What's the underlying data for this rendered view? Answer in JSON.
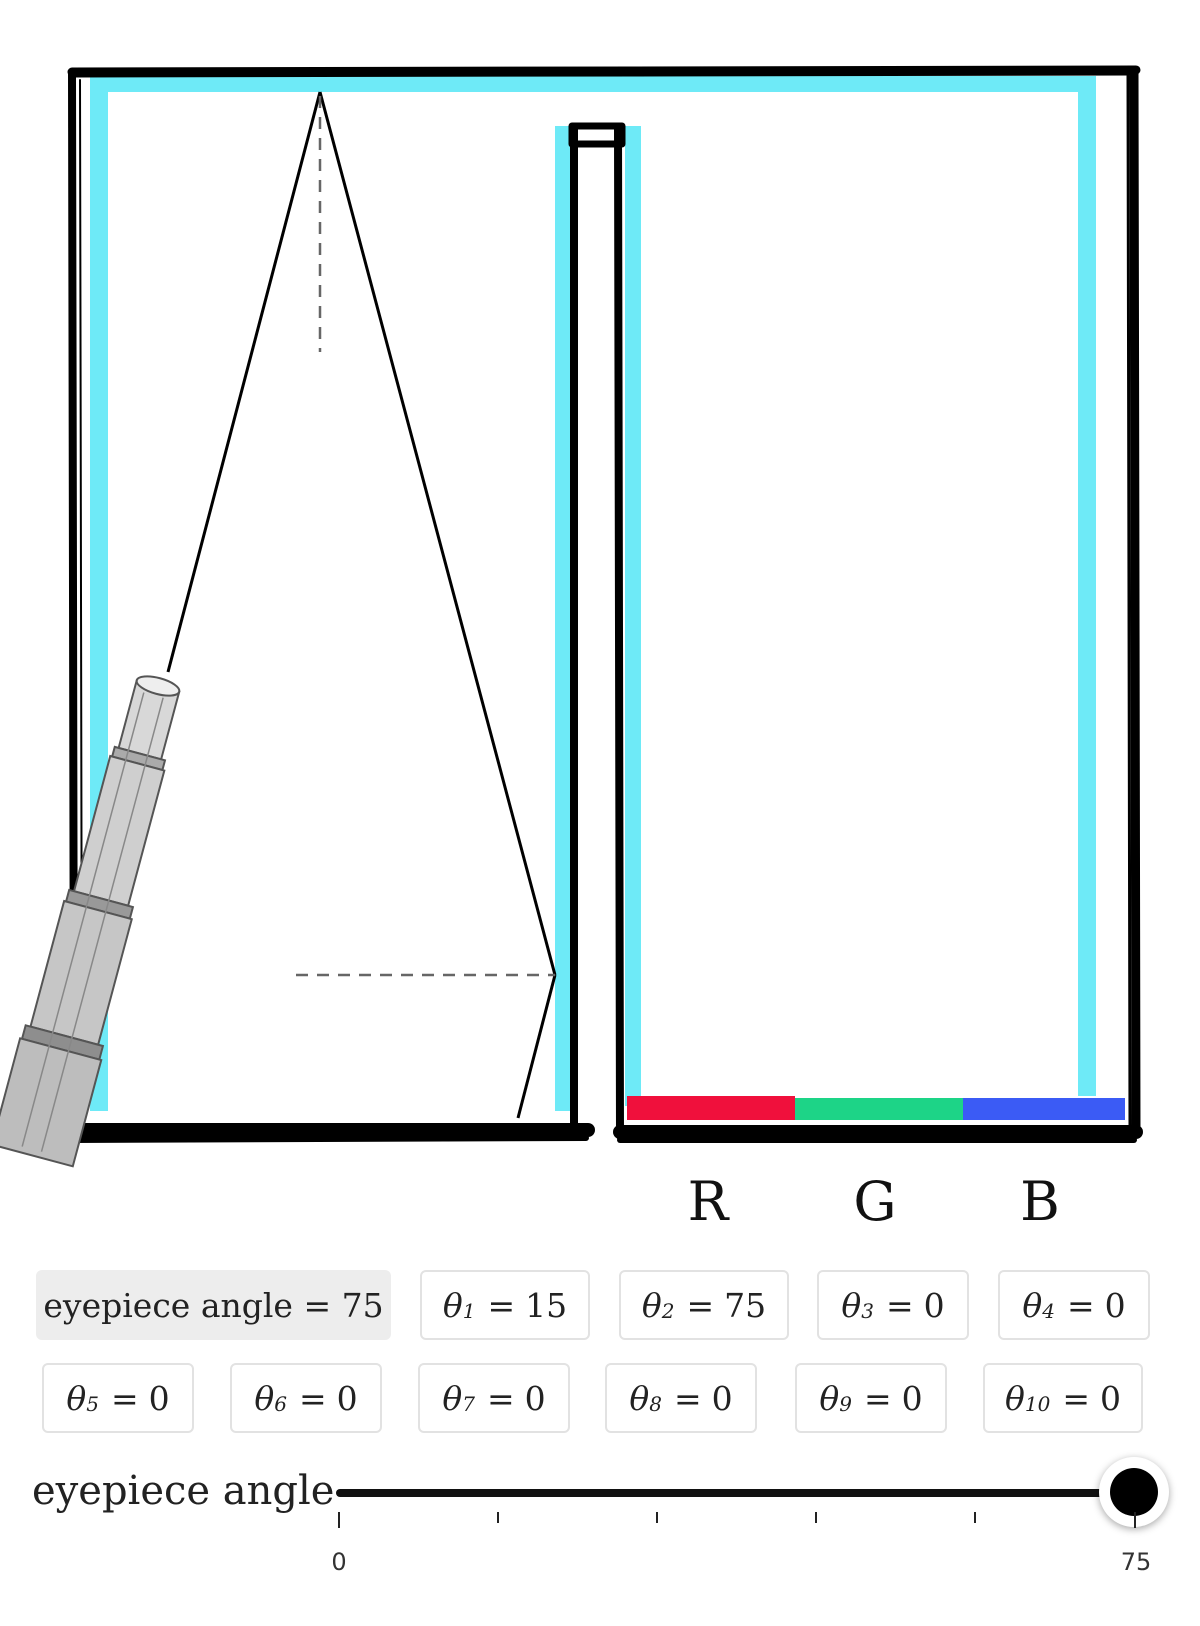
{
  "diagram": {
    "colors": {
      "glass": "#6EEAF7",
      "red": "#F0103C",
      "green": "#1DD487",
      "blue": "#3B5BF5"
    },
    "icons": [
      "telescope-icon"
    ]
  },
  "channels": [
    "R",
    "G",
    "B"
  ],
  "controls": {
    "eyepiece": "eyepiece angle = 75",
    "thetas": [
      {
        "sym": "θ",
        "sub": "1",
        "val": "15"
      },
      {
        "sym": "θ",
        "sub": "2",
        "val": "75"
      },
      {
        "sym": "θ",
        "sub": "3",
        "val": "0"
      },
      {
        "sym": "θ",
        "sub": "4",
        "val": "0"
      },
      {
        "sym": "θ",
        "sub": "5",
        "val": "0"
      },
      {
        "sym": "θ",
        "sub": "6",
        "val": "0"
      },
      {
        "sym": "θ",
        "sub": "7",
        "val": "0"
      },
      {
        "sym": "θ",
        "sub": "8",
        "val": "0"
      },
      {
        "sym": "θ",
        "sub": "9",
        "val": "0"
      },
      {
        "sym": "θ",
        "sub": "10",
        "val": "0"
      }
    ],
    "eq_sign": "="
  },
  "slider": {
    "label": "eyepiece angle",
    "min": 0,
    "max": 75,
    "value": 75,
    "min_label": "0",
    "max_label": "75"
  }
}
